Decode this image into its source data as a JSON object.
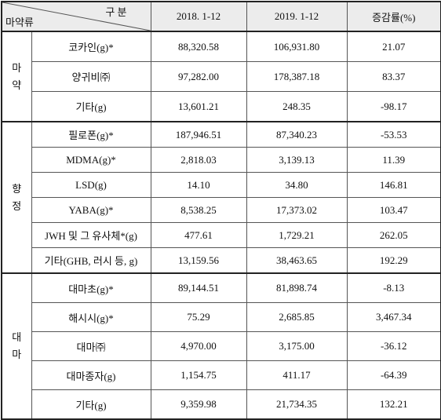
{
  "header": {
    "corner_top": "구 분",
    "corner_bottom": "마약류",
    "columns": [
      "2018. 1-12",
      "2019. 1-12",
      "증감률(%)"
    ]
  },
  "groups": [
    {
      "name": "마약",
      "rows": [
        [
          "코카인(g)*",
          "88,320.58",
          "106,931.80",
          "21.07"
        ],
        [
          "양귀비㈜",
          "97,282.00",
          "178,387.18",
          "83.37"
        ],
        [
          "기타(g)",
          "13,601.21",
          "248.35",
          "-98.17"
        ]
      ]
    },
    {
      "name": "향정",
      "rows": [
        [
          "필로폰(g)*",
          "187,946.51",
          "87,340.23",
          "-53.53"
        ],
        [
          "MDMA(g)*",
          "2,818.03",
          "3,139.13",
          "11.39"
        ],
        [
          "LSD(g)",
          "14.10",
          "34.80",
          "146.81"
        ],
        [
          "YABA(g)*",
          "8,538.25",
          "17,373.02",
          "103.47"
        ],
        [
          "JWH 및 그 유사체*(g)",
          "477.61",
          "1,729.21",
          "262.05"
        ],
        [
          "기타(GHB, 러시 등, g)",
          "13,159.56",
          "38,463.65",
          "192.29"
        ]
      ]
    },
    {
      "name": "대마",
      "rows": [
        [
          "대마초(g)*",
          "89,144.51",
          "81,898.74",
          "-8.13"
        ],
        [
          "해시시(g)*",
          "75.29",
          "2,685.85",
          "3,467.34"
        ],
        [
          "대마㈜",
          "4,970.00",
          "3,175.00",
          "-36.12"
        ],
        [
          "대마종자(g)",
          "1,154.75",
          "411.17",
          "-64.39"
        ],
        [
          "기타(g)",
          "9,359.98",
          "21,734.35",
          "132.21"
        ]
      ]
    }
  ]
}
